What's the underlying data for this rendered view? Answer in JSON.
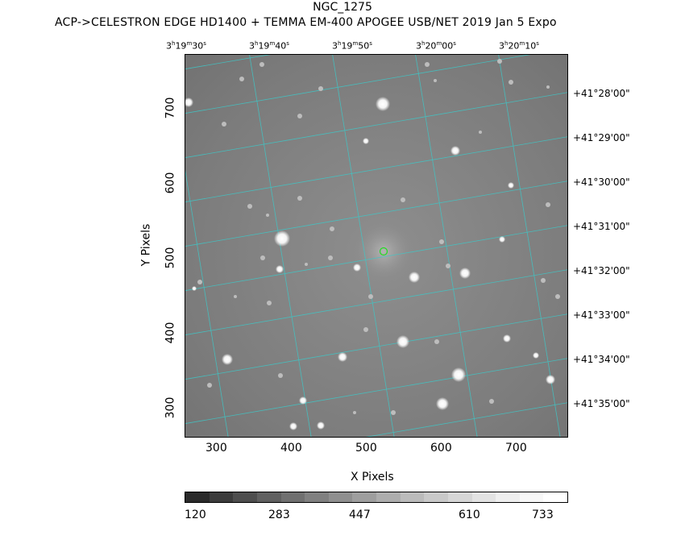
{
  "title": "NGC_1275",
  "subtitle": "ACP->CELESTRON EDGE HD1400 + TEMMA EM-400 APOGEE USB/NET   2019 Jan  5    Expo",
  "ra_labels": [
    {
      "h": "3",
      "m": "19",
      "s": "30"
    },
    {
      "h": "3",
      "m": "19",
      "s": "40"
    },
    {
      "h": "3",
      "m": "19",
      "s": "50"
    },
    {
      "h": "3",
      "m": "20",
      "s": "00"
    },
    {
      "h": "3",
      "m": "20",
      "s": "10"
    }
  ],
  "dec_labels": [
    "+41°28'00\"",
    "+41°29'00\"",
    "+41°30'00\"",
    "+41°31'00\"",
    "+41°32'00\"",
    "+41°33'00\"",
    "+41°34'00\"",
    "+41°35'00\""
  ],
  "x_axis": {
    "label": "X Pixels",
    "ticks": [
      "300",
      "400",
      "500",
      "600",
      "700"
    ]
  },
  "y_axis": {
    "label": "Y Pixels",
    "ticks": [
      "700",
      "600",
      "500",
      "400",
      "300"
    ]
  },
  "colorbar": {
    "labels": [
      "120",
      "283",
      "447",
      "610",
      "733"
    ],
    "range": [
      120,
      733
    ]
  },
  "colors": {
    "grid": "#3ec7c7",
    "target_marker": "#22dd22",
    "background": "#ffffff"
  }
}
